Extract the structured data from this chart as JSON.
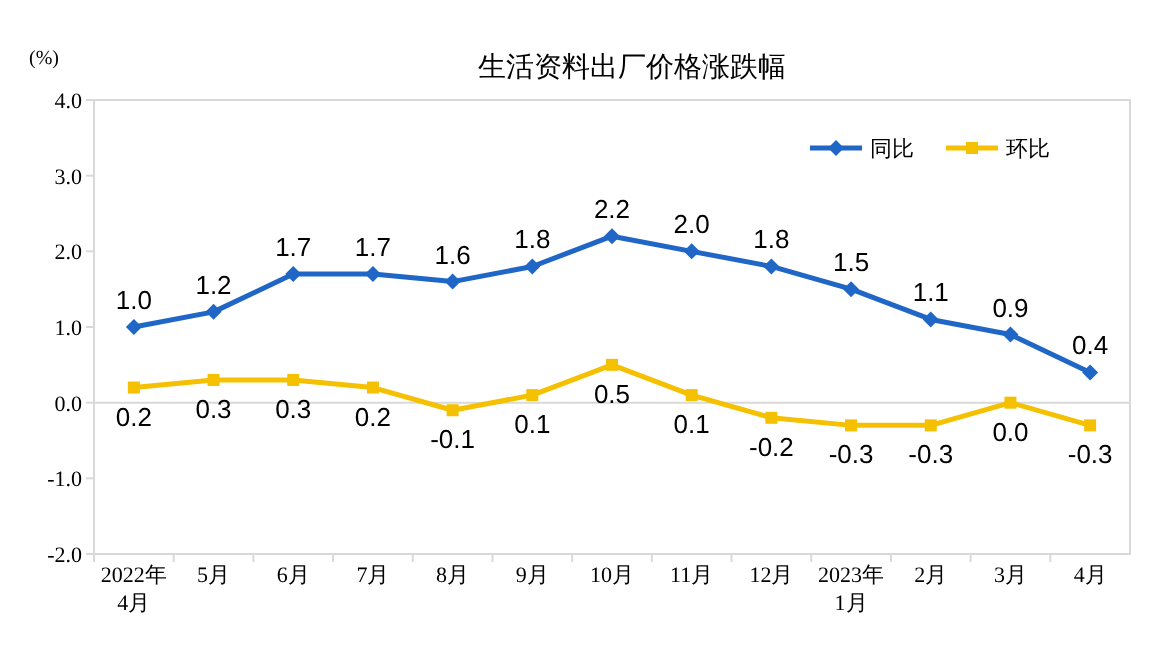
{
  "chart_data": {
    "type": "line",
    "title": "生活资料出厂价格涨跌幅",
    "ylabel": "(%)",
    "categories": [
      "2022年\n4月",
      "5月",
      "6月",
      "7月",
      "8月",
      "9月",
      "10月",
      "11月",
      "12月",
      "2023年\n1月",
      "2月",
      "3月",
      "4月"
    ],
    "series": [
      {
        "name": "同比",
        "color": "#1f66c6",
        "marker": "diamond",
        "values": [
          1.0,
          1.2,
          1.7,
          1.7,
          1.6,
          1.8,
          2.2,
          2.0,
          1.8,
          1.5,
          1.1,
          0.9,
          0.4
        ],
        "value_labels": [
          "1.0",
          "1.2",
          "1.7",
          "1.7",
          "1.6",
          "1.8",
          "2.2",
          "2.0",
          "1.8",
          "1.5",
          "1.1",
          "0.9",
          "0.4"
        ]
      },
      {
        "name": "环比",
        "color": "#f5c000",
        "marker": "square",
        "values": [
          0.2,
          0.3,
          0.3,
          0.2,
          -0.1,
          0.1,
          0.5,
          0.1,
          -0.2,
          -0.3,
          -0.3,
          0.0,
          -0.3
        ],
        "value_labels": [
          "0.2",
          "0.3",
          "0.3",
          "0.2",
          "-0.1",
          "0.1",
          "0.5",
          "0.1",
          "-0.2",
          "-0.3",
          "-0.3",
          "0.0",
          "-0.3"
        ]
      }
    ],
    "ylim": [
      -2,
      4
    ],
    "yticks": [
      {
        "value": -2,
        "label": "-2.0"
      },
      {
        "value": -1,
        "label": "-1.0"
      },
      {
        "value": 0,
        "label": "0.0"
      },
      {
        "value": 1,
        "label": "1.0"
      },
      {
        "value": 2,
        "label": "2.0"
      },
      {
        "value": 3,
        "label": "3.0"
      },
      {
        "value": 4,
        "label": "4.0"
      }
    ],
    "ref_lines": [
      {
        "axis": "y",
        "value": 0,
        "color": "#d9d9d9"
      }
    ],
    "legend": "top right"
  }
}
